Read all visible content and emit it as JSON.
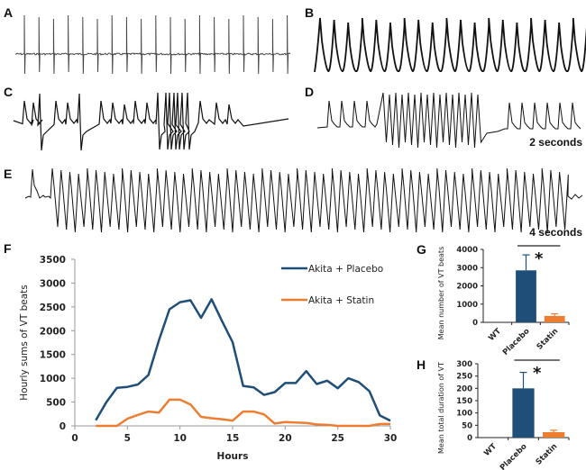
{
  "panels": {
    "A": {
      "label": "A",
      "description": "ECG trace, normal sinus rhythm"
    },
    "B": {
      "label": "B",
      "description": "Ventricular tachycardia trace"
    },
    "C": {
      "label": "C",
      "description": "ECG trace with premature beats and short VT run"
    },
    "D": {
      "label": "D",
      "description": "ECG trace with VT run",
      "scale_bar": "2 seconds"
    },
    "E": {
      "label": "E",
      "description": "Sustained VT trace",
      "scale_bar": "4 seconds"
    },
    "F": {
      "label": "F"
    },
    "G": {
      "label": "G"
    },
    "H": {
      "label": "H"
    }
  },
  "chart_data": [
    {
      "id": "F",
      "type": "line",
      "title": "",
      "xlabel": "Hours",
      "ylabel": "Hourly sums of VT beats",
      "xlim": [
        0,
        30
      ],
      "ylim": [
        0,
        3500
      ],
      "xticks": [
        "0",
        "5",
        "10",
        "15",
        "20",
        "25",
        "30"
      ],
      "yticks": [
        "0",
        "500",
        "1000",
        "1500",
        "2000",
        "2500",
        "3000",
        "3500"
      ],
      "grid": false,
      "legend_position": "top-right",
      "x": [
        2,
        3,
        4,
        5,
        6,
        7,
        8,
        9,
        10,
        11,
        12,
        13,
        14,
        15,
        16,
        17,
        18,
        19,
        20,
        21,
        22,
        23,
        24,
        25,
        26,
        27,
        28,
        29,
        30
      ],
      "series": [
        {
          "name": "Akita + Placebo",
          "color": "#1f4e79",
          "values": [
            120,
            500,
            800,
            820,
            870,
            1070,
            1800,
            2450,
            2600,
            2640,
            2270,
            2660,
            2200,
            1760,
            840,
            810,
            650,
            710,
            900,
            900,
            1150,
            880,
            950,
            790,
            1000,
            920,
            730,
            220,
            110
          ]
        },
        {
          "name": "Akita + Statin",
          "color": "#ed7d31",
          "values": [
            0,
            0,
            0,
            150,
            230,
            300,
            280,
            550,
            550,
            450,
            190,
            160,
            140,
            110,
            300,
            300,
            240,
            50,
            80,
            70,
            60,
            30,
            20,
            0,
            0,
            0,
            0,
            40,
            40
          ]
        }
      ]
    },
    {
      "id": "G",
      "type": "bar",
      "ylabel": "Mean number of VT beats",
      "categories": [
        "WT",
        "Placebo",
        "Statin"
      ],
      "values": [
        0,
        2850,
        350
      ],
      "errors": [
        0,
        850,
        120
      ],
      "colors": [
        "#1f4e79",
        "#1f4e79",
        "#ed7d31"
      ],
      "ylim": [
        0,
        4000
      ],
      "yticks": [
        "0",
        "1000",
        "2000",
        "3000",
        "4000"
      ],
      "significance": "*"
    },
    {
      "id": "H",
      "type": "bar",
      "ylabel": "Mean total duration of VT",
      "categories": [
        "WT",
        "Placebo",
        "Statin"
      ],
      "values": [
        0,
        200,
        22
      ],
      "errors": [
        0,
        65,
        8
      ],
      "colors": [
        "#1f4e79",
        "#1f4e79",
        "#ed7d31"
      ],
      "ylim": [
        0,
        300
      ],
      "yticks": [
        "0",
        "50",
        "100",
        "150",
        "200",
        "250",
        "300"
      ],
      "significance": "*"
    }
  ]
}
